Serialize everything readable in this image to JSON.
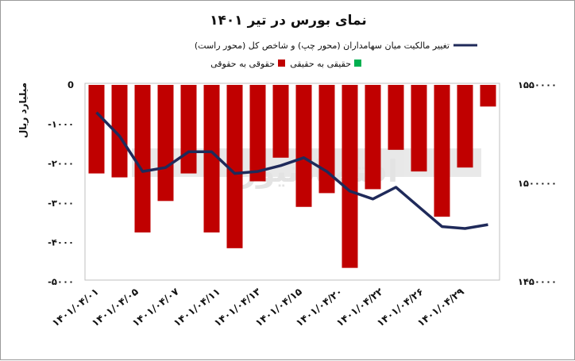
{
  "chart_data": {
    "type": "bar",
    "title": "نمای بورس در تیر ۱۴۰۱",
    "legend": {
      "line_label": "تغییر مالکیت میان سهامداران (محور چپ) و شاخص کل (محور راست)",
      "bar_labels": [
        "حقوقی به حقوقی",
        "حقیقی به حقیقی"
      ],
      "bar_colors": [
        "#c00000",
        "#00b050"
      ],
      "placement": "top-right"
    },
    "ylabel_left": "میلیارد ریال",
    "left_axis": {
      "min": -5000,
      "max": 0,
      "ticks": [
        "0",
        "-۱۰۰۰",
        "-۲۰۰۰",
        "-۳۰۰۰",
        "-۴۰۰۰",
        "-۵۰۰۰"
      ]
    },
    "right_axis": {
      "min": 1450000,
      "max": 1550000,
      "ticks": [
        "۱۵۵۰۰۰۰",
        "۱۵۰۰۰۰۰",
        "۱۴۵۰۰۰۰"
      ]
    },
    "x_tick_labels": [
      "۱۴۰۱/۰۴/۰۱",
      "۱۴۰۱/۰۴/۰۵",
      "۱۴۰۱/۰۴/۰۷",
      "۱۴۰۱/۰۴/۱۱",
      "۱۴۰۱/۰۴/۱۳",
      "۱۴۰۱/۰۴/۱۵",
      "۱۴۰۱/۰۴/۲۰",
      "۱۴۰۱/۰۴/۲۲",
      "۱۴۰۱/۰۴/۲۶",
      "۱۴۰۱/۰۴/۲۹"
    ],
    "bar_values": [
      -2250,
      -2350,
      -3750,
      -2950,
      -2250,
      -3750,
      -4150,
      -2450,
      -1850,
      -3100,
      -2750,
      -4650,
      -2650,
      -1650,
      -2200,
      -3350,
      -2100,
      -550
    ],
    "line_values": [
      1536000,
      1524000,
      1506000,
      1508000,
      1516000,
      1516000,
      1505000,
      1506000,
      1509000,
      1513000,
      1506000,
      1496000,
      1492000,
      1498000,
      1488000,
      1478000,
      1477000,
      1479000
    ],
    "bar_color": "#c00000",
    "line_color": "#1f2a5a",
    "grid": false
  },
  "watermark": "اقتصادنیوز"
}
